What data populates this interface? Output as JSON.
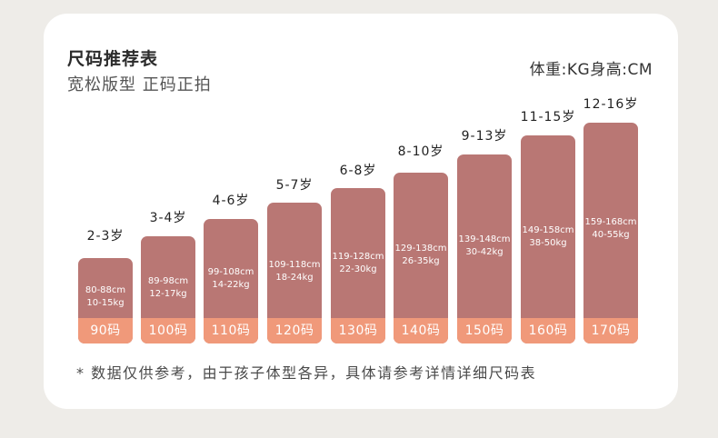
{
  "header": {
    "title": "尺码推荐表",
    "subtitle": "宽松版型  正码正拍",
    "unit_note": "体重:KG身高:CM"
  },
  "columns": [
    {
      "age": "2-3岁",
      "height": "80-88cm",
      "weight": "10-15kg",
      "size": "90码"
    },
    {
      "age": "3-4岁",
      "height": "89-98cm",
      "weight": "12-17kg",
      "size": "100码"
    },
    {
      "age": "4-6岁",
      "height": "99-108cm",
      "weight": "14-22kg",
      "size": "110码"
    },
    {
      "age": "5-7岁",
      "height": "109-118cm",
      "weight": "18-24kg",
      "size": "120码"
    },
    {
      "age": "6-8岁",
      "height": "119-128cm",
      "weight": "22-30kg",
      "size": "130码"
    },
    {
      "age": "8-10岁",
      "height": "129-138cm",
      "weight": "26-35kg",
      "size": "140码"
    },
    {
      "age": "9-13岁",
      "height": "139-148cm",
      "weight": "30-42kg",
      "size": "150码"
    },
    {
      "age": "11-15岁",
      "height": "149-158cm",
      "weight": "38-50kg",
      "size": "160码"
    },
    {
      "age": "12-16岁",
      "height": "159-168cm",
      "weight": "40-55kg",
      "size": "170码"
    }
  ],
  "footnote": "* 数据仅供参考，由于孩子体型各异，具体请参考详情详细尺码表",
  "colors": {
    "background": "#eeece8",
    "card": "#ffffff",
    "bar": "#b97774",
    "size_band": "#f0997a"
  }
}
